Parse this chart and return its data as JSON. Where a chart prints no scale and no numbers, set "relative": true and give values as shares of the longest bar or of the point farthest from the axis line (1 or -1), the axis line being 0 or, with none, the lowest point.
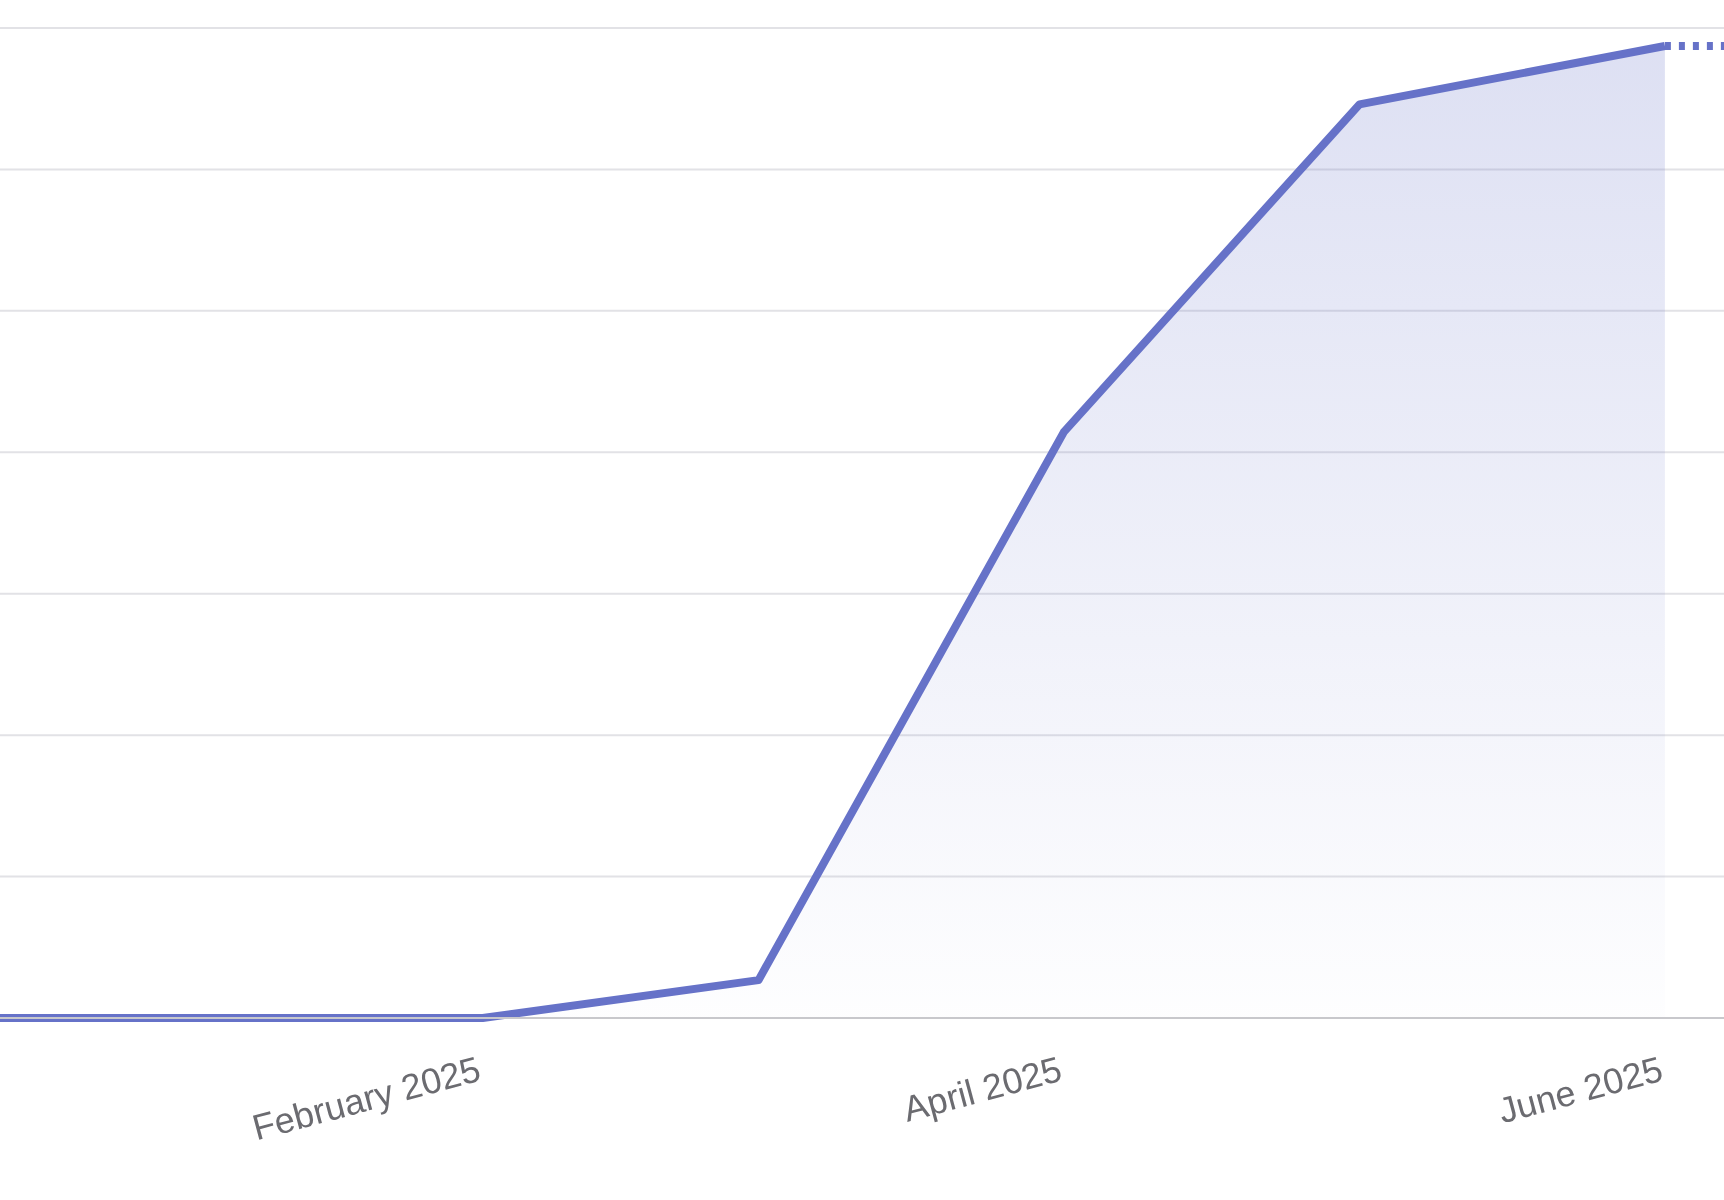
{
  "chart_data": {
    "type": "area",
    "relative": true,
    "grid": "y",
    "xlim": [
      "2024-12-14",
      "2025-06-07"
    ],
    "xticks": [
      {
        "value": "2025-02-01",
        "label": "February 2025"
      },
      {
        "value": "2025-04-01",
        "label": "April 2025"
      },
      {
        "value": "2025-06-01",
        "label": "June 2025"
      }
    ],
    "series": [
      {
        "color": "#6672c8",
        "x": [
          "2024-12-14",
          "2025-02-01",
          "2025-03-01",
          "2025-04-01",
          "2025-05-01",
          "2025-06-01"
        ],
        "values": [
          0,
          0,
          0.039,
          0.603,
          0.94,
          1
        ]
      },
      {
        "type": "line",
        "line_style": "dotted",
        "color": "#6672c8",
        "x": [
          "2025-06-01",
          "2025-06-07"
        ],
        "values": [
          1,
          1
        ]
      }
    ]
  }
}
